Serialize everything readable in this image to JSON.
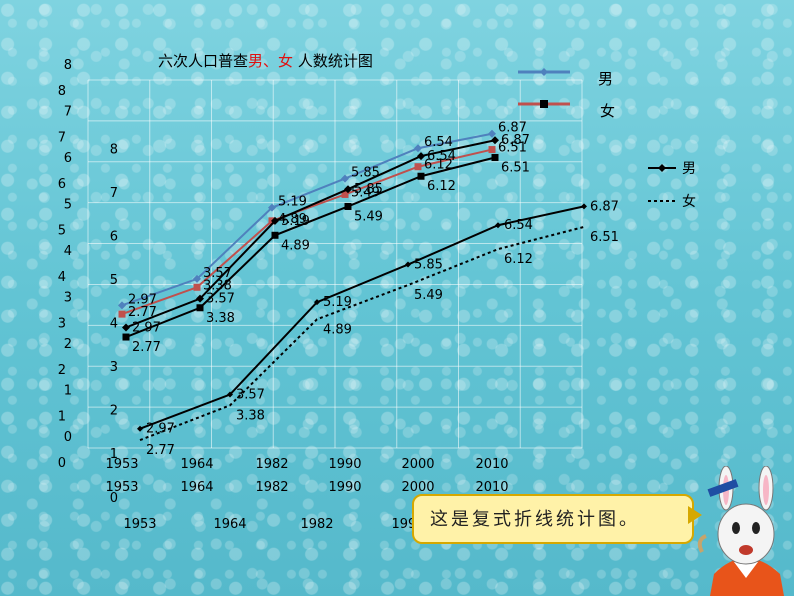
{
  "title": {
    "prefix": "六次人口普查",
    "male": "男",
    "sep": "、",
    "female": "女",
    "suffix": " 人数统计图"
  },
  "note": "这是复式折线统计图。",
  "colors": {
    "male": "#4f81bd",
    "female": "#c0504d",
    "accent_red": "#e01010"
  },
  "chart_data": {
    "type": "line",
    "categories": [
      "1953",
      "1964",
      "1982",
      "1990",
      "2000",
      "2010"
    ],
    "series": [
      {
        "name": "男",
        "values": [
          2.97,
          3.57,
          5.19,
          5.85,
          6.54,
          6.87
        ]
      },
      {
        "name": "女",
        "values": [
          2.77,
          3.38,
          4.89,
          5.49,
          6.12,
          6.51
        ]
      }
    ],
    "y_ticks": [
      "0",
      "1",
      "2",
      "3",
      "4",
      "5",
      "6",
      "7",
      "8"
    ],
    "y_ticks_inner": [
      "1",
      "2",
      "3",
      "4",
      "5",
      "6",
      "7",
      "8"
    ],
    "ylim": [
      0,
      8
    ],
    "legend_position": "right",
    "grid": true
  }
}
